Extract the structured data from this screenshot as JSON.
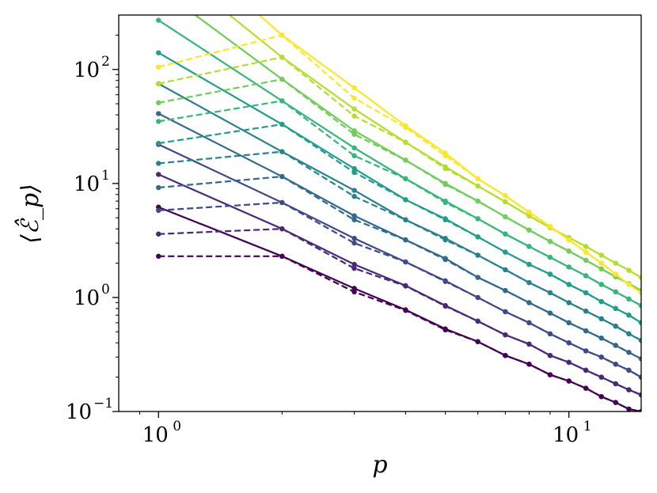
{
  "chart_data": {
    "type": "line",
    "xscale": "log",
    "yscale": "log",
    "xlim": [
      0.8,
      15
    ],
    "ylim": [
      0.1,
      300
    ],
    "xlabel": "p",
    "ylabel": "⟨ℰ̂_p⟩",
    "x_major_ticks": [
      {
        "value": 1,
        "base": "10",
        "exp": "0"
      },
      {
        "value": 10,
        "base": "10",
        "exp": "1"
      }
    ],
    "y_major_ticks": [
      {
        "value": 0.1,
        "base": "10",
        "exp": "−1"
      },
      {
        "value": 1,
        "base": "10",
        "exp": "0"
      },
      {
        "value": 10,
        "base": "10",
        "exp": "1"
      },
      {
        "value": 100,
        "base": "10",
        "exp": "2"
      }
    ],
    "x": [
      1,
      2,
      3,
      4,
      5,
      6,
      7,
      8,
      9,
      10,
      11,
      12,
      13,
      14,
      15
    ],
    "grid": false,
    "legend": "none",
    "series": [
      {
        "color": "#440154",
        "style": "solid",
        "values": [
          6.2,
          2.3,
          1.2,
          0.78,
          0.53,
          0.41,
          0.31,
          0.26,
          0.21,
          0.185,
          0.16,
          0.135,
          0.12,
          0.105,
          0.1
        ]
      },
      {
        "color": "#440154",
        "style": "dashed",
        "values": [
          2.3,
          2.3,
          1.12,
          0.77,
          0.52,
          0.41,
          0.31,
          0.26,
          0.21,
          0.185,
          0.16,
          0.135,
          0.12,
          0.105,
          0.1
        ]
      },
      {
        "color": "#482878",
        "style": "solid",
        "values": [
          12,
          4.0,
          1.95,
          1.27,
          0.85,
          0.62,
          0.47,
          0.39,
          0.31,
          0.27,
          0.23,
          0.2,
          0.175,
          0.155,
          0.14
        ]
      },
      {
        "color": "#482878",
        "style": "dashed",
        "values": [
          3.6,
          4.0,
          1.8,
          1.26,
          0.84,
          0.62,
          0.47,
          0.39,
          0.31,
          0.27,
          0.23,
          0.2,
          0.175,
          0.155,
          0.14
        ]
      },
      {
        "color": "#3e4989",
        "style": "solid",
        "values": [
          22,
          6.8,
          3.3,
          2.05,
          1.4,
          1.0,
          0.75,
          0.6,
          0.48,
          0.4,
          0.34,
          0.3,
          0.26,
          0.23,
          0.2
        ]
      },
      {
        "color": "#3e4989",
        "style": "dashed",
        "values": [
          5.8,
          6.8,
          3.0,
          2.05,
          1.38,
          1.0,
          0.75,
          0.6,
          0.48,
          0.4,
          0.34,
          0.3,
          0.26,
          0.23,
          0.2
        ]
      },
      {
        "color": "#31688e",
        "style": "solid",
        "values": [
          41,
          11.5,
          5.2,
          3.2,
          2.2,
          1.5,
          1.15,
          0.9,
          0.73,
          0.6,
          0.51,
          0.44,
          0.38,
          0.33,
          0.29
        ]
      },
      {
        "color": "#31688e",
        "style": "dashed",
        "values": [
          9.2,
          11.5,
          4.8,
          3.2,
          2.15,
          1.5,
          1.15,
          0.9,
          0.73,
          0.6,
          0.51,
          0.44,
          0.38,
          0.33,
          0.29
        ]
      },
      {
        "color": "#26828e",
        "style": "solid",
        "values": [
          75,
          19,
          8.7,
          4.8,
          3.3,
          2.35,
          1.75,
          1.35,
          1.1,
          0.9,
          0.76,
          0.65,
          0.56,
          0.48,
          0.42
        ]
      },
      {
        "color": "#26828e",
        "style": "dashed",
        "values": [
          15,
          19,
          7.7,
          4.8,
          3.2,
          2.35,
          1.75,
          1.35,
          1.1,
          0.9,
          0.76,
          0.65,
          0.56,
          0.48,
          0.42
        ]
      },
      {
        "color": "#1f9e89",
        "style": "solid",
        "values": [
          140,
          33,
          13.5,
          7.2,
          4.9,
          3.4,
          2.5,
          1.95,
          1.6,
          1.3,
          1.1,
          0.92,
          0.8,
          0.7,
          0.6
        ]
      },
      {
        "color": "#1f9e89",
        "style": "dashed",
        "values": [
          22.5,
          33,
          12.5,
          7.2,
          4.8,
          3.4,
          2.5,
          1.95,
          1.6,
          1.3,
          1.1,
          0.92,
          0.8,
          0.7,
          0.6
        ]
      },
      {
        "color": "#35b779",
        "style": "solid",
        "values": [
          270,
          53,
          20.5,
          11,
          7.0,
          4.9,
          3.6,
          2.8,
          2.25,
          1.85,
          1.55,
          1.3,
          1.12,
          0.97,
          0.85
        ]
      },
      {
        "color": "#35b779",
        "style": "dashed",
        "values": [
          35,
          53,
          17.5,
          11,
          6.8,
          4.9,
          3.6,
          2.8,
          2.25,
          1.85,
          1.55,
          1.3,
          1.12,
          0.97,
          0.85
        ]
      },
      {
        "color": "#6ece58",
        "style": "solid",
        "values": [
          520,
          82,
          29,
          16,
          10,
          7.0,
          5.1,
          3.9,
          3.1,
          2.55,
          2.12,
          1.78,
          1.52,
          1.32,
          1.15
        ]
      },
      {
        "color": "#6ece58",
        "style": "dashed",
        "values": [
          51,
          82,
          27,
          16,
          9.8,
          7.0,
          5.1,
          3.9,
          3.1,
          2.55,
          2.12,
          1.78,
          1.52,
          1.32,
          1.15
        ]
      },
      {
        "color": "#b5de2b",
        "style": "solid",
        "values": [
          950,
          128,
          45,
          23,
          14,
          9.5,
          6.9,
          5.2,
          4.1,
          3.35,
          2.8,
          2.35,
          2.0,
          1.73,
          1.5
        ]
      },
      {
        "color": "#b5de2b",
        "style": "dashed",
        "values": [
          75,
          128,
          39,
          23,
          13.5,
          9.5,
          6.9,
          5.2,
          4.1,
          3.35,
          2.8,
          2.35,
          2.0,
          1.73,
          1.5
        ]
      },
      {
        "color": "#fde725",
        "style": "solid",
        "values": [
          1800,
          200,
          69,
          32,
          18.5,
          11,
          7.8,
          5.6,
          4.2,
          3.2,
          2.5,
          2.0,
          1.6,
          1.3,
          1.1
        ]
      },
      {
        "color": "#fde725",
        "style": "dashed",
        "values": [
          105,
          200,
          56,
          31,
          17.5,
          11,
          7.8,
          5.6,
          4.2,
          3.2,
          2.5,
          2.0,
          1.6,
          1.3,
          1.1
        ]
      }
    ]
  }
}
